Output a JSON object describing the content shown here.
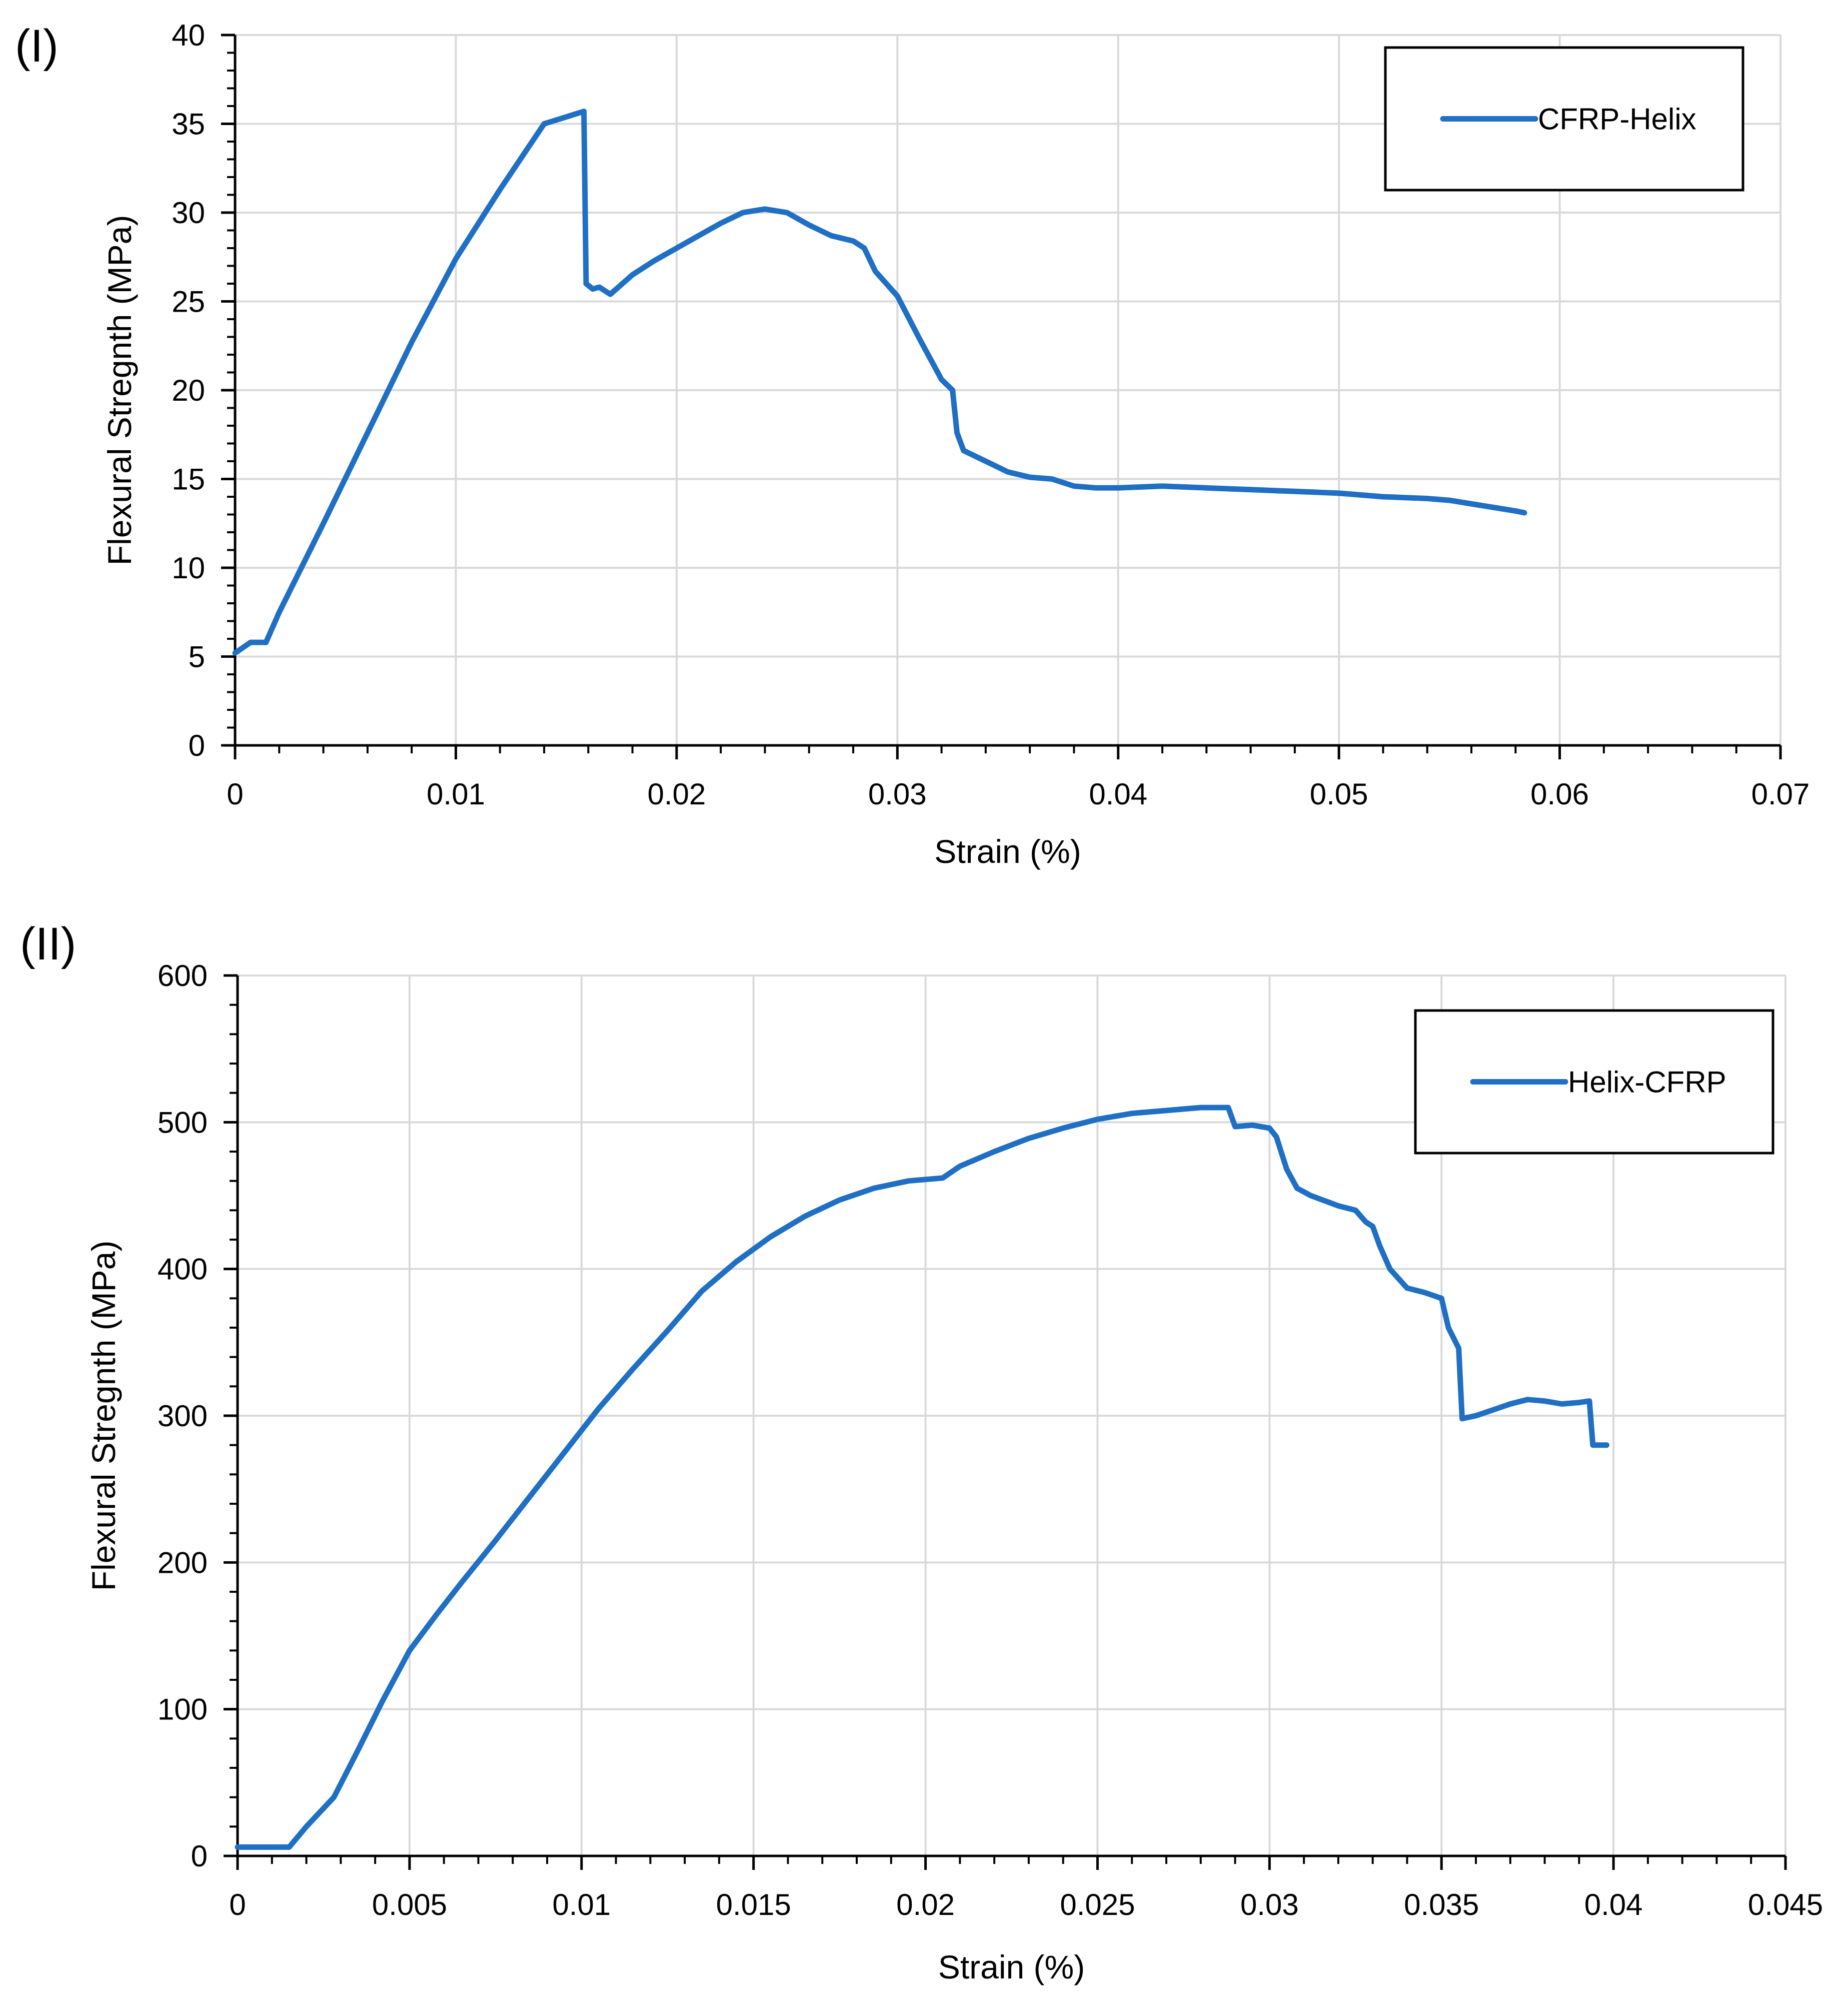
{
  "figure": {
    "panel_labels": [
      "(I)",
      "(II)"
    ]
  },
  "colors": {
    "series": "#1f6fc4",
    "grid": "#d9d9d9",
    "axis": "#000000"
  },
  "chart_data": [
    {
      "type": "line",
      "panel": "(I)",
      "title": "",
      "xlabel": "Strain (%)",
      "ylabel": "Flexural Stregnth (MPa)",
      "xlim": [
        0,
        0.07
      ],
      "ylim": [
        0,
        40
      ],
      "x_ticks": [
        0,
        0.01,
        0.02,
        0.03,
        0.04,
        0.05,
        0.06,
        0.07
      ],
      "x_tick_labels": [
        "0",
        "0.01",
        "0.02",
        "0.03",
        "0.04",
        "0.05",
        "0.06",
        "0.07"
      ],
      "y_ticks": [
        0,
        5,
        10,
        15,
        20,
        25,
        30,
        35,
        40
      ],
      "y_tick_labels": [
        "0",
        "5",
        "10",
        "15",
        "20",
        "25",
        "30",
        "35",
        "40"
      ],
      "grid": true,
      "legend_position": "top-right",
      "series": [
        {
          "name": "CFRP-Helix",
          "x": [
            0,
            0.0007,
            0.0014,
            0.002,
            0.004,
            0.006,
            0.008,
            0.01,
            0.012,
            0.014,
            0.0158,
            0.0159,
            0.0162,
            0.0165,
            0.017,
            0.018,
            0.019,
            0.02,
            0.021,
            0.022,
            0.023,
            0.024,
            0.025,
            0.026,
            0.027,
            0.028,
            0.0285,
            0.029,
            0.0295,
            0.03,
            0.031,
            0.032,
            0.0325,
            0.0327,
            0.033,
            0.034,
            0.035,
            0.036,
            0.037,
            0.038,
            0.039,
            0.04,
            0.042,
            0.044,
            0.046,
            0.048,
            0.05,
            0.052,
            0.054,
            0.055,
            0.056,
            0.057,
            0.058,
            0.0584
          ],
          "y": [
            5.2,
            5.8,
            5.8,
            7.5,
            12.5,
            17.6,
            22.7,
            27.4,
            31.3,
            35.0,
            35.7,
            26.0,
            25.7,
            25.8,
            25.4,
            26.5,
            27.3,
            28.0,
            28.7,
            29.4,
            30.0,
            30.2,
            30.0,
            29.3,
            28.7,
            28.4,
            28.0,
            26.7,
            26.0,
            25.3,
            22.9,
            20.6,
            20.0,
            17.6,
            16.6,
            16.0,
            15.4,
            15.1,
            15.0,
            14.6,
            14.5,
            14.5,
            14.6,
            14.5,
            14.4,
            14.3,
            14.2,
            14.0,
            13.9,
            13.8,
            13.6,
            13.4,
            13.2,
            13.1
          ]
        }
      ]
    },
    {
      "type": "line",
      "panel": "(II)",
      "title": "",
      "xlabel": "Strain (%)",
      "ylabel": "Flexural Stregnth (MPa)",
      "xlim": [
        0,
        0.045
      ],
      "ylim": [
        0,
        600
      ],
      "x_ticks": [
        0,
        0.005,
        0.01,
        0.015,
        0.02,
        0.025,
        0.03,
        0.035,
        0.04,
        0.045
      ],
      "x_tick_labels": [
        "0",
        "0.005",
        "0.01",
        "0.015",
        "0.02",
        "0.025",
        "0.03",
        "0.035",
        "0.04",
        "0.045"
      ],
      "y_ticks": [
        0,
        100,
        200,
        300,
        400,
        500,
        600
      ],
      "y_tick_labels": [
        "0",
        "100",
        "200",
        "300",
        "400",
        "500",
        "600"
      ],
      "grid": true,
      "legend_position": "top-right",
      "series": [
        {
          "name": "Helix-CFRP",
          "x": [
            0,
            0.0008,
            0.0015,
            0.002,
            0.0028,
            0.0035,
            0.0042,
            0.005,
            0.0058,
            0.0065,
            0.0075,
            0.0085,
            0.0095,
            0.0105,
            0.0115,
            0.0125,
            0.0135,
            0.0145,
            0.0155,
            0.0165,
            0.0175,
            0.0185,
            0.0195,
            0.0205,
            0.021,
            0.022,
            0.023,
            0.024,
            0.025,
            0.026,
            0.027,
            0.028,
            0.0288,
            0.029,
            0.0295,
            0.03,
            0.0302,
            0.0305,
            0.0308,
            0.0312,
            0.032,
            0.0325,
            0.0328,
            0.033,
            0.0332,
            0.0335,
            0.034,
            0.0345,
            0.035,
            0.0352,
            0.0355,
            0.0356,
            0.036,
            0.0365,
            0.037,
            0.0375,
            0.038,
            0.0385,
            0.039,
            0.0393,
            0.0394,
            0.0398
          ],
          "y": [
            6,
            6,
            6,
            20,
            40,
            72,
            105,
            140,
            165,
            186,
            215,
            245,
            275,
            305,
            332,
            358,
            385,
            405,
            422,
            436,
            447,
            455,
            460,
            462,
            470,
            480,
            489,
            496,
            502,
            506,
            508,
            510,
            510,
            497,
            498,
            496,
            490,
            468,
            455,
            450,
            443,
            440,
            432,
            429,
            416,
            400,
            387,
            384,
            380,
            360,
            346,
            298,
            300,
            304,
            308,
            311,
            310,
            308,
            309,
            310,
            280,
            280
          ]
        }
      ]
    }
  ]
}
